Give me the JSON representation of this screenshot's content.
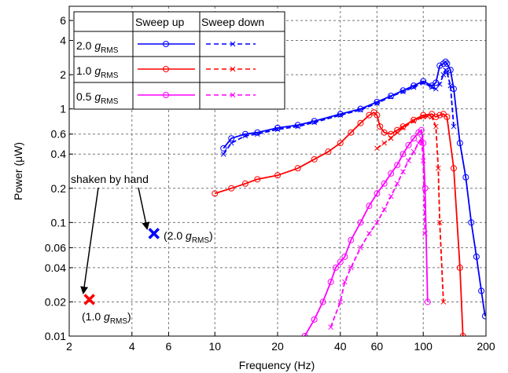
{
  "chart_data": {
    "type": "line",
    "xscale": "log",
    "yscale": "log",
    "xlim": [
      2,
      200
    ],
    "ylim": [
      0.01,
      8
    ],
    "grid": true,
    "xlabel": "Frequency (Hz)",
    "ylabel": "Power (μW)",
    "xticks": [
      2,
      4,
      6,
      10,
      20,
      40,
      60,
      100,
      200
    ],
    "xticklabels": [
      "2",
      "4",
      "6",
      "10",
      "20",
      "40",
      "60",
      "100",
      "200"
    ],
    "yticks": [
      0.01,
      0.02,
      0.04,
      0.06,
      0.1,
      0.2,
      0.4,
      0.6,
      1,
      2,
      4,
      6
    ],
    "yticklabels": [
      "0.01",
      "0.02",
      "0.04",
      "0.06",
      "0.1",
      "0.2",
      "0.4",
      "0.6",
      "1",
      "2",
      "4",
      "6"
    ],
    "legend": {
      "position": "top-left",
      "col_headers": [
        "Sweep up",
        "Sweep down"
      ],
      "rows": [
        {
          "num": "2.0",
          "g": "g",
          "sub": "RMS"
        },
        {
          "num": "1.0",
          "g": "g",
          "sub": "RMS"
        },
        {
          "num": "0.5",
          "g": "g",
          "sub": "RMS"
        }
      ]
    },
    "colors": {
      "2.0g": "#0000ff",
      "1.0g": "#ff0000",
      "0.5g": "#ff00ff"
    },
    "series": [
      {
        "key": "2.0 gRMS sweep up",
        "color": "#0000ff",
        "marker": "o",
        "x": [
          11,
          12,
          14,
          16,
          20,
          25,
          30,
          40,
          50,
          60,
          70,
          80,
          90,
          100,
          110,
          115,
          120,
          125,
          128,
          130,
          135,
          140,
          150,
          160,
          170,
          180,
          190,
          198
        ],
        "y": [
          0.45,
          0.55,
          0.6,
          0.62,
          0.68,
          0.72,
          0.78,
          0.9,
          1.0,
          1.15,
          1.3,
          1.45,
          1.6,
          1.75,
          1.6,
          1.7,
          2.4,
          2.5,
          2.6,
          2.5,
          2.2,
          1.5,
          0.5,
          0.25,
          0.1,
          0.05,
          0.025,
          0.015
        ]
      },
      {
        "key": "2.0 gRMS sweep down",
        "color": "#0000ff",
        "marker": "x",
        "x": [
          11,
          12,
          14,
          16,
          20,
          25,
          30,
          40,
          50,
          60,
          70,
          80,
          90,
          100,
          110,
          115,
          120,
          125,
          128,
          130,
          135,
          140
        ],
        "y": [
          0.4,
          0.5,
          0.58,
          0.6,
          0.66,
          0.7,
          0.76,
          0.88,
          0.98,
          1.12,
          1.28,
          1.42,
          1.55,
          1.7,
          1.55,
          1.5,
          1.65,
          2.0,
          2.2,
          2.1,
          1.6,
          0.7
        ]
      },
      {
        "key": "1.0 gRMS sweep up",
        "color": "#ff0000",
        "marker": "o",
        "x": [
          10,
          12,
          14,
          16,
          20,
          25,
          30,
          35,
          40,
          45,
          50,
          55,
          58,
          60,
          62,
          65,
          70,
          75,
          80,
          90,
          100,
          110,
          115,
          120,
          125,
          130,
          140,
          150,
          155
        ],
        "y": [
          0.18,
          0.2,
          0.22,
          0.24,
          0.26,
          0.3,
          0.36,
          0.42,
          0.5,
          0.62,
          0.75,
          0.88,
          0.93,
          0.88,
          0.7,
          0.62,
          0.6,
          0.65,
          0.7,
          0.8,
          0.88,
          0.9,
          0.85,
          0.88,
          0.9,
          0.85,
          0.3,
          0.04,
          0.01
        ]
      },
      {
        "key": "1.0 gRMS sweep down",
        "color": "#ff0000",
        "marker": "x",
        "x": [
          60,
          65,
          70,
          75,
          80,
          90,
          100,
          105,
          110,
          115,
          118,
          120,
          125
        ],
        "y": [
          0.45,
          0.5,
          0.55,
          0.62,
          0.68,
          0.78,
          0.85,
          0.86,
          0.85,
          0.7,
          0.3,
          0.1,
          0.02
        ]
      },
      {
        "key": "0.5 gRMS sweep up",
        "color": "#ff00ff",
        "marker": "o",
        "x": [
          27,
          30,
          33,
          36,
          38,
          40,
          42,
          45,
          50,
          55,
          60,
          65,
          70,
          75,
          80,
          85,
          90,
          95,
          98,
          100,
          102,
          105
        ],
        "y": [
          0.01,
          0.014,
          0.02,
          0.03,
          0.04,
          0.045,
          0.05,
          0.07,
          0.1,
          0.14,
          0.18,
          0.22,
          0.27,
          0.32,
          0.4,
          0.48,
          0.55,
          0.62,
          0.65,
          0.5,
          0.2,
          0.02
        ]
      },
      {
        "key": "0.5 gRMS sweep down",
        "color": "#ff00ff",
        "marker": "x",
        "x": [
          36,
          40,
          42,
          45,
          50,
          55,
          60,
          65,
          70,
          75,
          80,
          85,
          90,
          95,
          98,
          100,
          102
        ],
        "y": [
          0.012,
          0.02,
          0.03,
          0.04,
          0.06,
          0.08,
          0.1,
          0.13,
          0.17,
          0.22,
          0.28,
          0.35,
          0.42,
          0.5,
          0.55,
          0.35,
          0.08
        ]
      }
    ],
    "points": [
      {
        "x": 2.5,
        "y": 0.021,
        "color": "#ff0000",
        "marker": "x",
        "label": {
          "open": "(1.0 ",
          "g": "g",
          "sub": "RMS",
          "close": ")"
        }
      },
      {
        "x": 5.1,
        "y": 0.08,
        "color": "#0000ff",
        "marker": "x",
        "label": {
          "open": "(2.0 ",
          "g": "g",
          "sub": "RMS",
          "close": ")"
        }
      }
    ],
    "annotations": [
      {
        "text": "shaken by hand"
      }
    ]
  }
}
